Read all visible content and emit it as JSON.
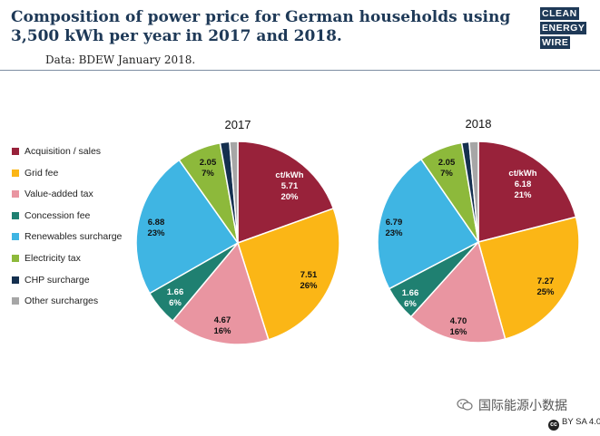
{
  "header": {
    "title": "Composition of power price for German households using 3,500 kWh per year in 2017 and 2018.",
    "subtitle": "Data: BDEW January 2018.",
    "logo_lines": [
      "CLEAN",
      "ENERGY",
      "WIRE"
    ]
  },
  "colors": {
    "title": "#1e3957",
    "acquisition": "#98223a",
    "grid": "#fbb616",
    "vat": "#e995a1",
    "concession": "#1f8071",
    "renewables": "#3fb5e3",
    "electricity_tax": "#8db93b",
    "chp": "#15304f",
    "other": "#a6a6a6"
  },
  "chart_data": [
    {
      "type": "pie",
      "title": "2017",
      "unit_label": "ct/kWh",
      "categories": [
        "Acquisition / sales",
        "Grid fee",
        "Value-added tax",
        "Concession fee",
        "Renewables surcharge",
        "Electricity tax",
        "CHP surcharge",
        "Other surcharges"
      ],
      "values": [
        5.71,
        7.51,
        4.67,
        1.66,
        6.88,
        2.05,
        0.44,
        0.38
      ],
      "value_labels": [
        "5.71",
        "7.51",
        "4.67",
        "1.66",
        "6.88",
        "2.05",
        "",
        ""
      ],
      "percent_labels": [
        "20%",
        "26%",
        "16%",
        "6%",
        "23%",
        "7%",
        "",
        ""
      ],
      "legend_position": "left"
    },
    {
      "type": "pie",
      "title": "2018",
      "unit_label": "ct/kWh",
      "categories": [
        "Acquisition / sales",
        "Grid fee",
        "Value-added tax",
        "Concession fee",
        "Renewables surcharge",
        "Electricity tax",
        "CHP surcharge",
        "Other surcharges"
      ],
      "values": [
        6.18,
        7.27,
        4.7,
        1.66,
        6.79,
        2.05,
        0.35,
        0.43
      ],
      "value_labels": [
        "6.18",
        "7.27",
        "4.70",
        "1.66",
        "6.79",
        "2.05",
        "",
        ""
      ],
      "percent_labels": [
        "21%",
        "25%",
        "16%",
        "6%",
        "23%",
        "7%",
        "",
        ""
      ],
      "legend_position": "left"
    }
  ],
  "legend": {
    "items": [
      {
        "label": "Acquisition / sales",
        "color": "#98223a"
      },
      {
        "label": "Grid fee",
        "color": "#fbb616"
      },
      {
        "label": "Value-added tax",
        "color": "#e995a1"
      },
      {
        "label": "Concession fee",
        "color": "#1f8071"
      },
      {
        "label": "Renewables surcharge",
        "color": "#3fb5e3"
      },
      {
        "label": "Electricity tax",
        "color": "#8db93b"
      },
      {
        "label": "CHP surcharge",
        "color": "#15304f"
      },
      {
        "label": "Other surcharges",
        "color": "#a6a6a6"
      }
    ]
  },
  "footer": {
    "brand": "国际能源小数据",
    "brand_icon": "wechat-icon",
    "license": "BY SA 4.0",
    "license_icon": "cc"
  }
}
